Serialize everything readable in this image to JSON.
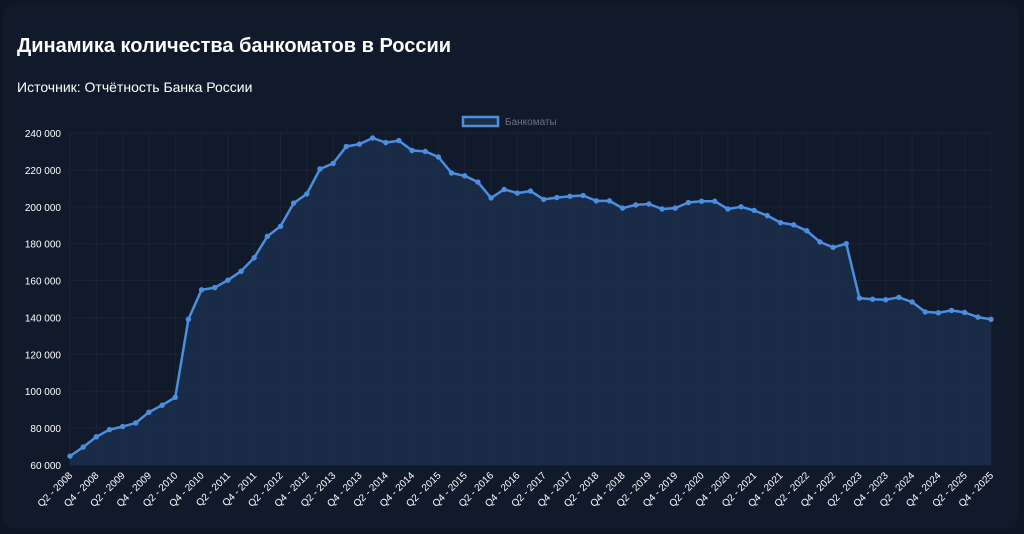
{
  "title": "Динамика количества банкоматов в России",
  "subtitle": "Источник: Отчётность Банка России",
  "colors": {
    "background": "#111a2b",
    "line": "#4b8fe0",
    "fill": "#1c2d4a",
    "grid": "#1a2436",
    "text": "#ffffff"
  },
  "chart_data": {
    "type": "area",
    "legend_position": "top-center",
    "grid": true,
    "ylim": [
      60000,
      240000
    ],
    "y_ticks": [
      "60 000",
      "80 000",
      "100 000",
      "120 000",
      "140 000",
      "160 000",
      "180 000",
      "200 000",
      "220 000",
      "240 000"
    ],
    "x_tick_labels": [
      "Q2 - 2008",
      "Q4 - 2008",
      "Q2 - 2009",
      "Q4 - 2009",
      "Q2 - 2010",
      "Q4 - 2010",
      "Q2 - 2011",
      "Q4 - 2011",
      "Q2 - 2012",
      "Q4 - 2012",
      "Q2 - 2013",
      "Q4 - 2013",
      "Q2 - 2014",
      "Q4 - 2014",
      "Q2 - 2015",
      "Q4 - 2015",
      "Q2 - 2016",
      "Q4 - 2016",
      "Q2 - 2017",
      "Q4 - 2017",
      "Q2 - 2018",
      "Q4 - 2018",
      "Q2 - 2019",
      "Q4 - 2019",
      "Q2 - 2020",
      "Q4 - 2020",
      "Q2 - 2021",
      "Q4 - 2021",
      "Q2 - 2022",
      "Q4 - 2022",
      "Q2 - 2023",
      "Q4 - 2023",
      "Q2 - 2024",
      "Q4 - 2024",
      "Q2 - 2025",
      "Q4 - 2025"
    ],
    "series": [
      {
        "name": "Банкоматы",
        "values": [
          64800,
          69700,
          75300,
          79200,
          80800,
          82800,
          88600,
          92400,
          96700,
          139000,
          155000,
          156200,
          160200,
          165000,
          172400,
          184000,
          189400,
          202000,
          207000,
          220500,
          223500,
          232700,
          234000,
          237300,
          234800,
          235900,
          230500,
          230000,
          227000,
          218300,
          216800,
          213400,
          204800,
          209400,
          207400,
          208500,
          204000,
          205000,
          205700,
          206100,
          203200,
          203200,
          199300,
          201000,
          201500,
          198800,
          199300,
          202300,
          203000,
          203000,
          198800,
          200000,
          198000,
          195200,
          191400,
          190200,
          187000,
          180900,
          178000,
          180000,
          150500,
          149900,
          149600,
          150900,
          148400,
          143000,
          142500,
          143800,
          142700,
          140200,
          139000
        ]
      }
    ]
  }
}
